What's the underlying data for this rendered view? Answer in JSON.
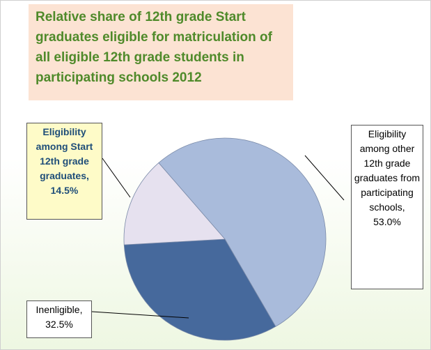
{
  "chart_data": {
    "type": "pie",
    "title": "Relative share of 12th grade Start graduates eligible for matriculation of all eligible  12th grade students in participating schools 2012",
    "categories": [
      "Eligibility among other 12th grade graduates from participating schools,",
      "Inenligible,",
      "Eligibility among Start 12th grade graduates,"
    ],
    "values": [
      53.0,
      32.5,
      14.5
    ],
    "value_labels": [
      "53.0%",
      "32.5%",
      "14.5%"
    ],
    "colors": [
      "#a9bbdb",
      "#46699c",
      "#e6e1ef"
    ]
  }
}
